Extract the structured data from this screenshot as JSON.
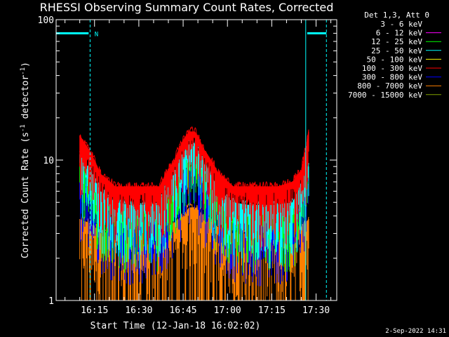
{
  "chart_data": {
    "type": "line",
    "title": "RHESSI Observing Summary Count Rates, Corrected",
    "xlabel": "Start Time (12-Jan-18 16:02:02)",
    "ylabel": "Corrected Count Rate (s",
    "ylabel_sup1": "-1",
    "ylabel_mid": " detector",
    "ylabel_sup2": "-1",
    "ylabel_end": ")",
    "yscale": "log",
    "ylim": [
      1,
      100
    ],
    "y_ticks": [
      1,
      10,
      100
    ],
    "y_tick_labels": [
      "1",
      "10",
      "100"
    ],
    "x_range_minutes": [
      0,
      95
    ],
    "x_ticks": [
      {
        "t": 13,
        "label": "16:15"
      },
      {
        "t": 28,
        "label": "16:30"
      },
      {
        "t": 43,
        "label": "16:45"
      },
      {
        "t": 58,
        "label": "17:00"
      },
      {
        "t": 73,
        "label": "17:15"
      },
      {
        "t": 88,
        "label": "17:30"
      }
    ],
    "legend_title": "Det 1,3, Att 0",
    "legend_placement": "right",
    "series": [
      {
        "name": "3 - 6 keV",
        "color": "#000000"
      },
      {
        "name": "6 - 12 keV",
        "color": "#ff00ff"
      },
      {
        "name": "12 - 25 keV",
        "color": "#00ff00"
      },
      {
        "name": "25 - 50 keV",
        "color": "#00ffff"
      },
      {
        "name": "50 - 100 keV",
        "color": "#ffff00"
      },
      {
        "name": "100 - 300 keV",
        "color": "#ff0000"
      },
      {
        "name": "300 - 800 keV",
        "color": "#0000ff"
      },
      {
        "name": "800 - 7000 keV",
        "color": "#ff8000"
      },
      {
        "name": "7000 - 15000 keV",
        "color": "#80a000"
      }
    ],
    "envelopes": [
      {
        "series": "100 - 300 keV",
        "color": "#ff0000",
        "x": [
          8,
          12,
          15,
          20,
          25,
          30,
          35,
          40,
          43,
          45,
          47,
          50,
          55,
          60,
          65,
          70,
          75,
          80,
          83,
          84.5,
          85.5
        ],
        "y": [
          15,
          11,
          8,
          6.5,
          6.5,
          6.5,
          6.5,
          10,
          14,
          16,
          16,
          12,
          8,
          6.5,
          6.5,
          6.5,
          6.5,
          7,
          8.5,
          12,
          16
        ]
      },
      {
        "series": "25 - 50 keV",
        "color": "#00ffff",
        "x": [
          8,
          12,
          15,
          20,
          25,
          30,
          35,
          40,
          43,
          45,
          47,
          50,
          55,
          60,
          65,
          70,
          75,
          80,
          83,
          84.5,
          85.5
        ],
        "y": [
          11,
          8,
          6,
          5,
          4.8,
          4.8,
          5,
          8,
          11,
          13,
          13,
          9.5,
          6,
          5,
          4.8,
          4.8,
          4.8,
          5,
          6.5,
          8,
          9
        ]
      },
      {
        "series": "12 - 25 keV",
        "color": "#00ff00",
        "x": [
          8,
          12,
          15,
          20,
          25,
          30,
          35,
          40,
          43,
          45,
          47,
          50,
          55,
          60,
          65,
          70,
          75,
          80,
          83,
          84.5,
          85.5
        ],
        "y": [
          10,
          7.5,
          5.5,
          4.6,
          4.4,
          4.4,
          4.6,
          7.5,
          10,
          12,
          12,
          9,
          5.6,
          4.6,
          4.4,
          4.4,
          4.4,
          4.6,
          6,
          7.5,
          8.5
        ]
      },
      {
        "series": "300 - 800 keV",
        "color": "#0000ff",
        "x": [
          8,
          12,
          15,
          20,
          25,
          30,
          35,
          40,
          43,
          45,
          47,
          50,
          55,
          60,
          65,
          70,
          75,
          80,
          83,
          84.5,
          85.5
        ],
        "y": [
          7,
          5.8,
          4.4,
          3.8,
          3.6,
          3.6,
          3.8,
          5.8,
          7.8,
          9,
          9,
          7,
          4.6,
          3.8,
          3.6,
          3.6,
          3.6,
          3.8,
          4.8,
          6,
          7
        ]
      },
      {
        "series": "800 - 7000 keV",
        "color": "#ff8000",
        "x": [
          8,
          12,
          15,
          20,
          25,
          30,
          35,
          40,
          43,
          45,
          47,
          50,
          55,
          60,
          65,
          70,
          75,
          80,
          83,
          84.5,
          85.5
        ],
        "y": [
          3.8,
          3.5,
          3.1,
          3,
          3,
          3,
          3.1,
          3.6,
          4,
          4.6,
          4.6,
          4,
          3.3,
          3,
          3,
          3,
          3,
          3.1,
          3.3,
          3.6,
          3.8
        ]
      }
    ],
    "timeline": {
      "color": "#00ffff",
      "solid_lines_t": [
        0,
        84.5
      ],
      "dashed_lines_t": [
        11.5,
        91.5
      ],
      "bars": [
        {
          "t0": 0,
          "t1": 11,
          "y": 80
        },
        {
          "t0": 85,
          "t1": 91.5,
          "y": 80
        }
      ],
      "marker_label": "N",
      "marker_t": 13
    },
    "x_values_note": ""
  },
  "footer": {
    "date": "2-Sep-2022 14:31"
  }
}
